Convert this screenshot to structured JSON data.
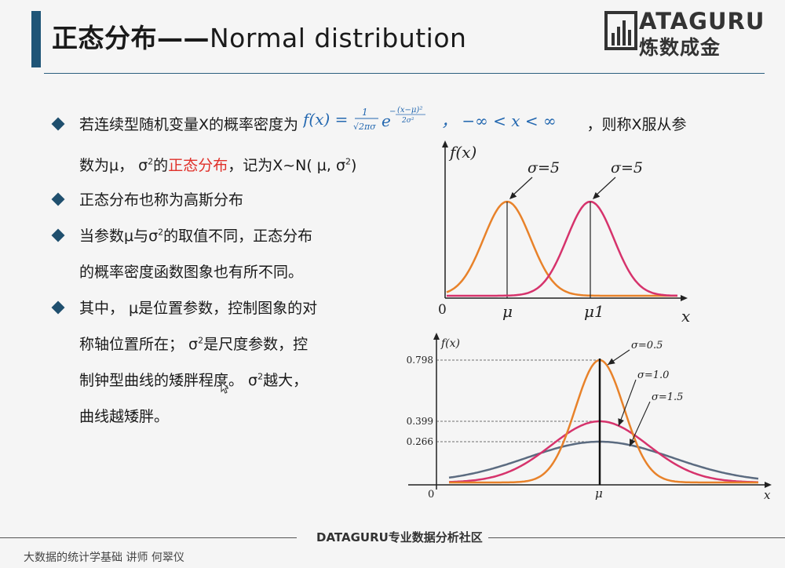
{
  "title": {
    "cn": "正态分布",
    "dash": "——",
    "en": "Normal distribution"
  },
  "logo": {
    "en": "ATAGURU",
    "cn": "炼数成金"
  },
  "bullets": {
    "b1_pre": "若连续型随机变量X的概率密度为",
    "b1_formula": "f(x) = 1/(√(2π)σ) e^(−(x−μ)²/2σ²) ， −∞ < x < ∞",
    "b1_post": "，则称X服从参",
    "b1_line2_pre": "数为μ， σ",
    "b1_line2_sup": "2",
    "b1_line2_mid": "的",
    "b1_line2_red": "正态分布",
    "b1_line2_post": "，记为X~N( μ, σ",
    "b1_line2_end": ")",
    "b2": "正态分布也称为高斯分布",
    "b3_l1_pre": "当参数μ与σ",
    "b3_l1_post": "的取值不同，正态分布",
    "b3_l2": "的概率密度函数图象也有所不同。",
    "b4_l1": "其中， μ是位置参数，控制图象的对",
    "b4_l2_pre": "称轴位置所在； σ",
    "b4_l2_post": "是尺度参数，控",
    "b4_l3_pre": "制钟型曲线的矮胖程度。 σ",
    "b4_l3_post": "越大，",
    "b4_l4": "曲线越矮胖。"
  },
  "chart_data": [
    {
      "type": "line",
      "ylabel": "f(x)",
      "xlabel": "x",
      "origin_label": "0",
      "x_tick_labels": [
        "μ",
        "μ1"
      ],
      "series": [
        {
          "name": "σ=5",
          "mean_label": "μ",
          "color": "#e8822a"
        },
        {
          "name": "σ=5",
          "mean_label": "μ1",
          "color": "#d6336c"
        }
      ]
    },
    {
      "type": "line",
      "ylabel": "f(x)",
      "xlabel": "x",
      "origin_label": "0",
      "x_tick_labels": [
        "μ"
      ],
      "y_ticks": [
        0.266,
        0.399,
        0.798
      ],
      "y_tick_labels": [
        "0.266",
        "0.399",
        "0.798"
      ],
      "series": [
        {
          "name": "σ=0.5",
          "sigma": 0.5,
          "peak": 0.798,
          "color": "#e8822a"
        },
        {
          "name": "σ=1.0",
          "sigma": 1.0,
          "peak": 0.399,
          "color": "#d6336c"
        },
        {
          "name": "σ=1.5",
          "sigma": 1.5,
          "peak": 0.266,
          "color": "#5b6b80"
        }
      ]
    }
  ],
  "footer": {
    "center": "DATAGURU专业数据分析社区",
    "left": "大数据的统计学基础  讲师 何翠仪"
  },
  "colors": {
    "accent": "#1f5577",
    "highlight": "#e0312a",
    "formula": "#2468b0"
  }
}
